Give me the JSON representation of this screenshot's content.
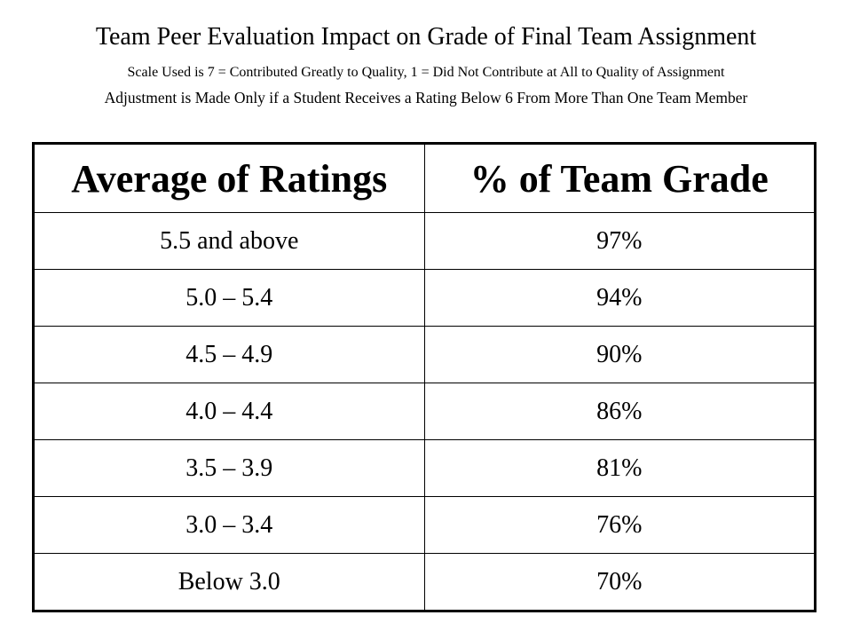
{
  "header": {
    "title": "Team Peer Evaluation Impact on Grade of Final Team Assignment",
    "scale_note": "Scale Used is 7 = Contributed Greatly to Quality, 1 = Did Not Contribute at All to Quality of Assignment",
    "adjustment_note": "Adjustment is Made Only if a Student Receives a Rating Below 6 From More Than One Team Member"
  },
  "table": {
    "columns": [
      "Average of Ratings",
      "% of Team Grade"
    ],
    "rows": [
      [
        "5.5 and above",
        "97%"
      ],
      [
        "5.0 – 5.4",
        "94%"
      ],
      [
        "4.5 – 4.9",
        "90%"
      ],
      [
        "4.0 – 4.4",
        "86%"
      ],
      [
        "3.5 – 3.9",
        "81%"
      ],
      [
        "3.0 – 3.4",
        "76%"
      ],
      [
        "Below 3.0",
        "70%"
      ]
    ]
  }
}
